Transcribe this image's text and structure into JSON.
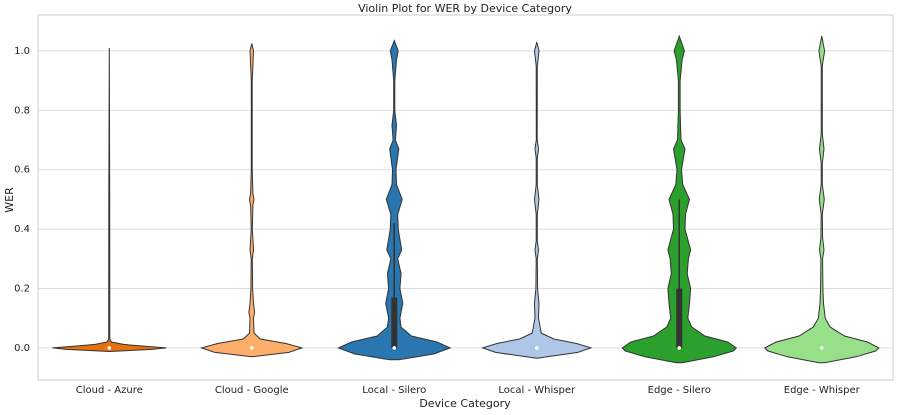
{
  "chart_data": {
    "type": "violin",
    "title": "Violin Plot for WER by Device Category",
    "x_label": "Device Category",
    "y_label": "WER",
    "categories": [
      "Cloud - Azure",
      "Cloud - Google",
      "Local - Silero",
      "Local - Whisper",
      "Edge - Silero",
      "Edge - Whisper"
    ],
    "ylim": [
      -0.108,
      1.121
    ],
    "yticks": [
      {
        "value": 0,
        "label": "0.0"
      },
      0.2,
      0.4,
      0.6,
      0.8,
      {
        "value": 1,
        "label": "1.0"
      }
    ],
    "grid": true,
    "violins": [
      {
        "color": "#e6720f",
        "y": [
          -0.012,
          -0.005,
          0,
          0.006,
          0.012,
          0.02,
          0.03,
          0.5,
          1.01
        ],
        "density": [
          0,
          0.75,
          1.0,
          0.6,
          0.25,
          0.04,
          0.01,
          0.008,
          0
        ],
        "quartiles": [
          0,
          0,
          0
        ],
        "whiskers": [
          0,
          0
        ]
      },
      {
        "color": "#fdae6b",
        "y": [
          -0.03,
          -0.015,
          0,
          0.015,
          0.03,
          0.05,
          0.1,
          0.12,
          0.15,
          0.2,
          0.3,
          0.33,
          0.4,
          0.48,
          0.5,
          0.52,
          0.6,
          0.9,
          1.0,
          1.025
        ],
        "density": [
          0,
          0.65,
          0.88,
          0.6,
          0.15,
          0.04,
          0.03,
          0.05,
          0.03,
          0.015,
          0.01,
          0.03,
          0.01,
          0.02,
          0.04,
          0.02,
          0.008,
          0.008,
          0.03,
          0
        ],
        "quartiles": [
          0,
          0,
          0
        ],
        "whiskers": [
          0,
          0
        ]
      },
      {
        "color": "#2a76b0",
        "y": [
          -0.04,
          -0.02,
          0,
          0.02,
          0.04,
          0.07,
          0.1,
          0.15,
          0.2,
          0.25,
          0.3,
          0.33,
          0.4,
          0.45,
          0.5,
          0.55,
          0.6,
          0.67,
          0.7,
          0.75,
          0.8,
          0.9,
          0.97,
          1.0,
          1.035
        ],
        "density": [
          0.08,
          0.7,
          0.98,
          0.75,
          0.3,
          0.12,
          0.1,
          0.15,
          0.1,
          0.12,
          0.06,
          0.13,
          0.07,
          0.06,
          0.14,
          0.04,
          0.03,
          0.08,
          0.02,
          0.04,
          0.01,
          0.01,
          0.04,
          0.07,
          0
        ],
        "quartiles": [
          0,
          0,
          0.17
        ],
        "whiskers": [
          0,
          0.42
        ]
      },
      {
        "color": "#aec7e8",
        "y": [
          -0.035,
          -0.015,
          0,
          0.015,
          0.03,
          0.05,
          0.1,
          0.15,
          0.2,
          0.3,
          0.33,
          0.36,
          0.45,
          0.5,
          0.55,
          0.64,
          0.67,
          0.7,
          0.95,
          1.0,
          1.03
        ],
        "density": [
          0,
          0.72,
          0.95,
          0.7,
          0.3,
          0.08,
          0.03,
          0.04,
          0.015,
          0.01,
          0.03,
          0.01,
          0.01,
          0.04,
          0.01,
          0.01,
          0.03,
          0.008,
          0.01,
          0.04,
          0
        ],
        "quartiles": [
          0,
          0,
          0
        ],
        "whiskers": [
          0,
          0
        ]
      },
      {
        "color": "#2ca02c",
        "y": [
          -0.05,
          -0.03,
          -0.01,
          0,
          0.02,
          0.04,
          0.07,
          0.1,
          0.15,
          0.2,
          0.25,
          0.3,
          0.33,
          0.4,
          0.45,
          0.5,
          0.55,
          0.6,
          0.67,
          0.7,
          0.8,
          0.9,
          0.97,
          1.0,
          1.05
        ],
        "density": [
          0.05,
          0.6,
          0.95,
          1.0,
          0.85,
          0.45,
          0.22,
          0.15,
          0.18,
          0.2,
          0.14,
          0.16,
          0.2,
          0.1,
          0.11,
          0.18,
          0.06,
          0.04,
          0.1,
          0.03,
          0.015,
          0.015,
          0.05,
          0.09,
          0
        ],
        "quartiles": [
          0,
          0,
          0.2
        ],
        "whiskers": [
          0,
          0.5
        ]
      },
      {
        "color": "#98df8a",
        "y": [
          -0.05,
          -0.03,
          -0.01,
          0,
          0.02,
          0.04,
          0.07,
          0.1,
          0.15,
          0.2,
          0.3,
          0.33,
          0.37,
          0.45,
          0.5,
          0.55,
          0.62,
          0.67,
          0.72,
          0.95,
          1.0,
          1.05
        ],
        "density": [
          0.05,
          0.6,
          0.95,
          1.0,
          0.8,
          0.4,
          0.15,
          0.06,
          0.03,
          0.02,
          0.015,
          0.04,
          0.015,
          0.01,
          0.045,
          0.01,
          0.01,
          0.04,
          0.01,
          0.01,
          0.05,
          0
        ],
        "quartiles": [
          0,
          0,
          0
        ],
        "whiskers": [
          0,
          0
        ]
      }
    ]
  }
}
